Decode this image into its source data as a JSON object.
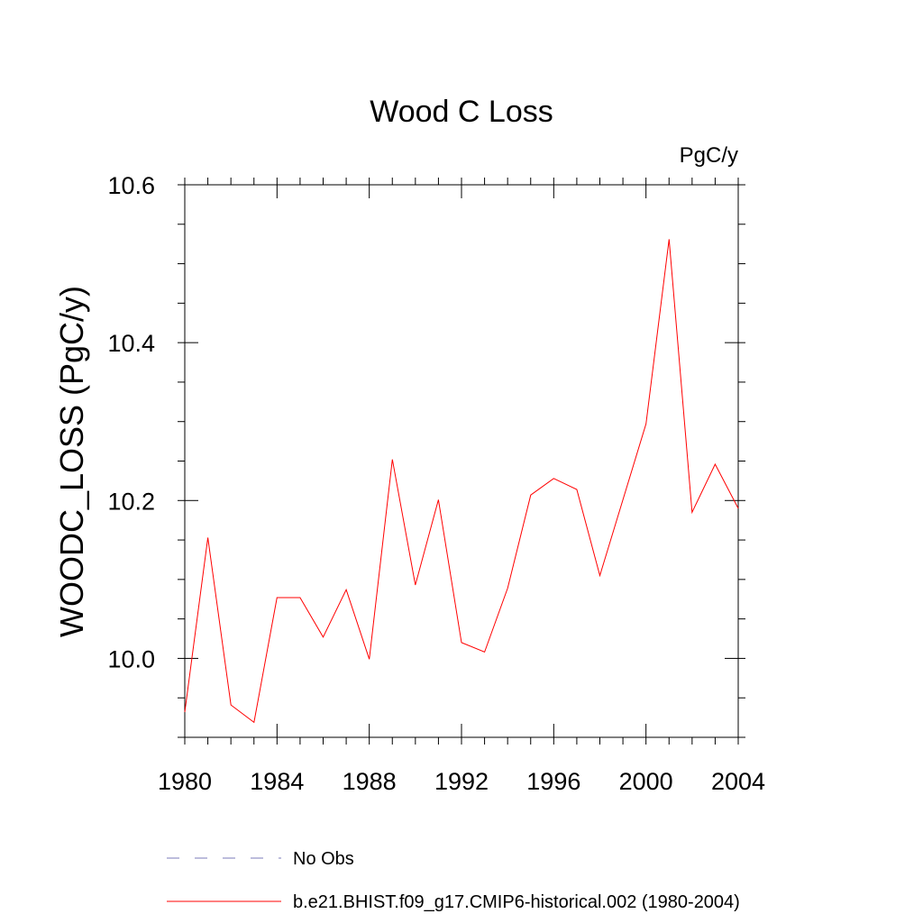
{
  "chart_data": {
    "type": "line",
    "title": "Wood C Loss",
    "units_label": "PgC/y",
    "xlabel": "",
    "ylabel": "WOODC_LOSS  (PgC/y)",
    "xlim": [
      1980,
      2004
    ],
    "ylim": [
      9.9,
      10.6
    ],
    "x_major_ticks": [
      1980,
      1984,
      1988,
      1992,
      1996,
      2000,
      2004
    ],
    "x_tick_labels": [
      "1980",
      "1984",
      "1988",
      "1992",
      "1996",
      "2000",
      "2004"
    ],
    "x_minor_step": 1,
    "y_major_ticks": [
      10.0,
      10.2,
      10.4,
      10.6
    ],
    "y_tick_labels": [
      "10.0",
      "10.2",
      "10.4",
      "10.6"
    ],
    "y_minor_step": 0.05,
    "grid": false,
    "legend_position": "bottom",
    "series": [
      {
        "name": "b.e21.BHIST.f09_g17.CMIP6-historical.002 (1980-2004)",
        "color": "#ff0000",
        "style": "solid",
        "x": [
          1980,
          1981,
          1982,
          1983,
          1984,
          1985,
          1986,
          1987,
          1988,
          1989,
          1990,
          1991,
          1992,
          1993,
          1994,
          1995,
          1996,
          1997,
          1998,
          1999,
          2000,
          2001,
          2002,
          2003,
          2004
        ],
        "y": [
          9.932,
          10.153,
          9.941,
          9.919,
          10.077,
          10.077,
          10.027,
          10.087,
          9.999,
          10.252,
          10.093,
          10.201,
          10.02,
          10.008,
          10.089,
          10.207,
          10.228,
          10.214,
          10.105,
          10.201,
          10.297,
          10.531,
          10.185,
          10.246,
          10.19
        ]
      }
    ],
    "legend": [
      {
        "label": "No Obs",
        "color": "#7b7bb8",
        "style": "dashed"
      },
      {
        "label": "b.e21.BHIST.f09_g17.CMIP6-historical.002 (1980-2004)",
        "color": "#ff0000",
        "style": "solid"
      }
    ]
  }
}
